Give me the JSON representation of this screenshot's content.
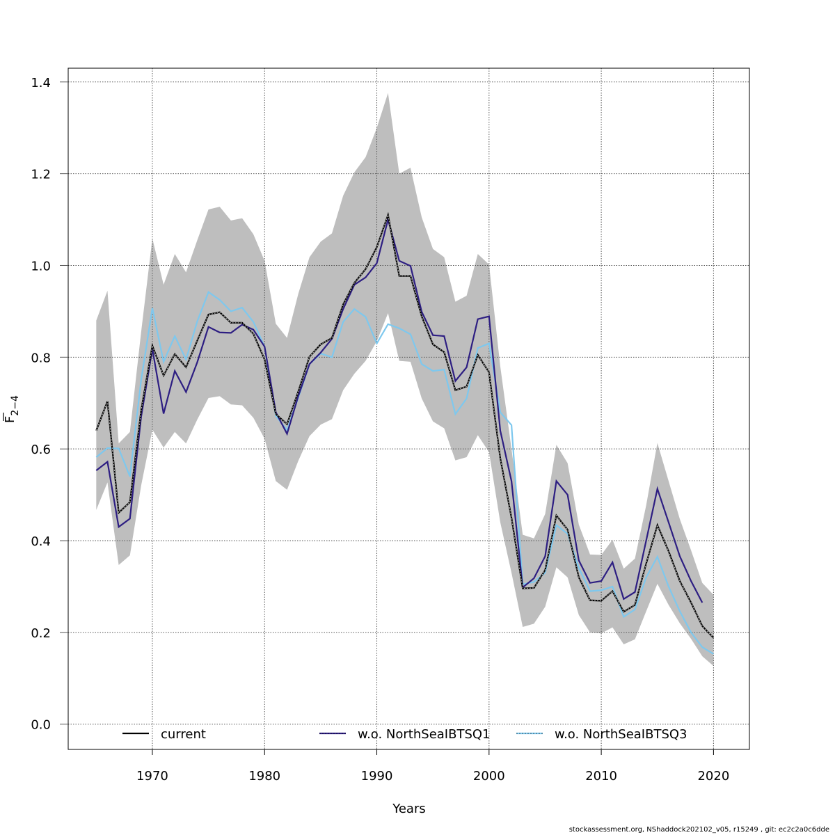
{
  "chart_data": {
    "type": "line",
    "title": "",
    "xlabel": "Years",
    "ylabel": "F̅ 2−4",
    "ylabel_main": "F",
    "ylabel_sub": "2−4",
    "xlim": [
      1962.5,
      2023.2
    ],
    "ylim": [
      -0.055,
      1.43
    ],
    "xticks": [
      1970,
      1980,
      1990,
      2000,
      2010,
      2020
    ],
    "xtick_labels": [
      "1970",
      "1980",
      "1990",
      "2000",
      "2010",
      "2020"
    ],
    "yticks": [
      0.0,
      0.2,
      0.4,
      0.6,
      0.8,
      1.0,
      1.2,
      1.4
    ],
    "ytick_labels": [
      "0.0",
      "0.2",
      "0.4",
      "0.6",
      "0.8",
      "1.0",
      "1.2",
      "1.4"
    ],
    "grid": true,
    "legend_position": "bottom",
    "x": [
      1965,
      1966,
      1967,
      1968,
      1969,
      1970,
      1971,
      1972,
      1973,
      1974,
      1975,
      1976,
      1977,
      1978,
      1979,
      1980,
      1981,
      1982,
      1983,
      1984,
      1985,
      1986,
      1987,
      1988,
      1989,
      1990,
      1991,
      1992,
      1993,
      1994,
      1995,
      1996,
      1997,
      1998,
      1999,
      2000,
      2001,
      2002,
      2003,
      2004,
      2005,
      2006,
      2007,
      2008,
      2009,
      2010,
      2011,
      2012,
      2013,
      2014,
      2015,
      2016,
      2017,
      2018,
      2019,
      2020
    ],
    "band": {
      "name": "confidence interval (current)",
      "color": "#bebebe",
      "lower": [
        0.467,
        0.527,
        0.347,
        0.368,
        0.52,
        0.642,
        0.603,
        0.637,
        0.612,
        0.664,
        0.711,
        0.715,
        0.697,
        0.695,
        0.668,
        0.622,
        0.53,
        0.511,
        0.574,
        0.628,
        0.653,
        0.665,
        0.728,
        0.764,
        0.792,
        0.835,
        0.896,
        0.792,
        0.79,
        0.71,
        0.66,
        0.645,
        0.575,
        0.582,
        0.63,
        0.593,
        0.44,
        0.33,
        0.212,
        0.219,
        0.256,
        0.342,
        0.32,
        0.238,
        0.2,
        0.198,
        0.211,
        0.174,
        0.185,
        0.246,
        0.306,
        0.26,
        0.22,
        0.186,
        0.148,
        0.127
      ],
      "upper": [
        0.88,
        0.945,
        0.612,
        0.637,
        0.855,
        1.059,
        0.958,
        1.025,
        0.985,
        1.055,
        1.122,
        1.128,
        1.098,
        1.103,
        1.068,
        1.01,
        0.873,
        0.842,
        0.938,
        1.018,
        1.052,
        1.07,
        1.152,
        1.203,
        1.236,
        1.3,
        1.376,
        1.2,
        1.213,
        1.105,
        1.036,
        1.018,
        0.921,
        0.934,
        1.025,
        1.002,
        0.78,
        0.6,
        0.413,
        0.405,
        0.458,
        0.609,
        0.569,
        0.435,
        0.37,
        0.369,
        0.402,
        0.339,
        0.361,
        0.477,
        0.613,
        0.53,
        0.447,
        0.379,
        0.308,
        0.282
      ]
    },
    "series": [
      {
        "name": "current",
        "color": "#000000",
        "style": "solid",
        "values": [
          0.64,
          0.704,
          0.461,
          0.484,
          0.684,
          0.825,
          0.76,
          0.807,
          0.778,
          0.836,
          0.893,
          0.898,
          0.875,
          0.875,
          0.851,
          0.795,
          0.676,
          0.654,
          0.725,
          0.801,
          0.828,
          0.842,
          0.915,
          0.962,
          0.992,
          1.04,
          1.11,
          0.977,
          0.977,
          0.889,
          0.828,
          0.811,
          0.728,
          0.736,
          0.805,
          0.767,
          0.58,
          0.45,
          0.296,
          0.297,
          0.336,
          0.455,
          0.424,
          0.32,
          0.27,
          0.269,
          0.29,
          0.245,
          0.26,
          0.35,
          0.434,
          0.377,
          0.312,
          0.265,
          0.214,
          0.188
        ]
      },
      {
        "name": "w.o. NorthSeaIBTSQ1",
        "color": "#2d1e82",
        "style": "solid",
        "values": [
          0.553,
          0.572,
          0.43,
          0.448,
          0.67,
          0.818,
          0.677,
          0.77,
          0.724,
          0.789,
          0.866,
          0.854,
          0.853,
          0.871,
          0.86,
          0.823,
          0.68,
          0.633,
          0.715,
          0.785,
          0.81,
          0.84,
          0.905,
          0.958,
          0.974,
          1.005,
          1.1,
          1.01,
          0.999,
          0.899,
          0.848,
          0.846,
          0.748,
          0.778,
          0.883,
          0.889,
          0.64,
          0.53,
          0.298,
          0.318,
          0.366,
          0.53,
          0.5,
          0.357,
          0.308,
          0.312,
          0.353,
          0.273,
          0.288,
          0.4,
          0.513,
          0.44,
          0.366,
          0.312,
          0.265,
          null
        ]
      },
      {
        "name": "w.o. NorthSeaIBTSQ3",
        "color": "#7ec8ee",
        "style": "solid",
        "values": [
          0.582,
          0.602,
          0.601,
          0.54,
          0.75,
          0.907,
          0.79,
          0.846,
          0.795,
          0.878,
          0.942,
          0.925,
          0.9,
          0.908,
          0.877,
          0.823,
          0.672,
          0.641,
          0.712,
          0.785,
          0.808,
          0.8,
          0.877,
          0.905,
          0.888,
          0.83,
          0.872,
          0.863,
          0.85,
          0.785,
          0.77,
          0.773,
          0.676,
          0.71,
          0.82,
          0.83,
          0.68,
          0.652,
          0.305,
          0.31,
          0.33,
          0.434,
          0.415,
          0.34,
          0.29,
          0.292,
          0.3,
          0.234,
          0.25,
          0.32,
          0.365,
          0.3,
          0.246,
          0.2,
          0.168,
          0.153
        ]
      }
    ]
  },
  "legend": {
    "items": [
      {
        "label": "current",
        "color": "#000000"
      },
      {
        "label": "w.o. NorthSeaIBTSQ1",
        "color": "#2d1e82"
      },
      {
        "label": "w.o. NorthSeaIBTSQ3",
        "color": "#7ec8ee"
      }
    ]
  },
  "footer": {
    "text": "stockassessment.org, NShaddock202102_v05, r15249 , git: ec2c2a0c6dde"
  }
}
